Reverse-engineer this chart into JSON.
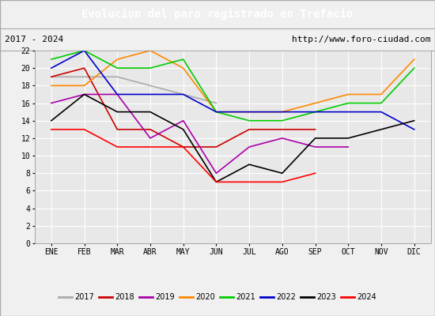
{
  "title": "Evolucion del paro registrado en Trefacio",
  "subtitle_left": "2017 - 2024",
  "subtitle_right": "http://www.foro-ciudad.com",
  "months": [
    "ENE",
    "FEB",
    "MAR",
    "ABR",
    "MAY",
    "JUN",
    "JUL",
    "AGO",
    "SEP",
    "OCT",
    "NOV",
    "DIC"
  ],
  "series": {
    "2017": {
      "color": "#aaaaaa",
      "data": [
        19,
        19,
        19,
        18,
        17,
        16,
        null,
        null,
        null,
        null,
        null,
        null
      ]
    },
    "2018": {
      "color": "#cc0000",
      "data": [
        19,
        20,
        13,
        13,
        11,
        11,
        13,
        13,
        13,
        null,
        null,
        null
      ]
    },
    "2019": {
      "color": "#aa00aa",
      "data": [
        16,
        17,
        17,
        12,
        14,
        8,
        11,
        12,
        11,
        11,
        null,
        null
      ]
    },
    "2020": {
      "color": "#ff8800",
      "data": [
        18,
        18,
        21,
        22,
        20,
        15,
        15,
        15,
        16,
        17,
        17,
        21
      ]
    },
    "2021": {
      "color": "#00cc00",
      "data": [
        21,
        22,
        20,
        20,
        21,
        15,
        14,
        14,
        15,
        16,
        16,
        20
      ]
    },
    "2022": {
      "color": "#0000cc",
      "data": [
        20,
        22,
        17,
        17,
        17,
        15,
        15,
        15,
        15,
        15,
        15,
        13
      ]
    },
    "2023": {
      "color": "#000000",
      "data": [
        14,
        17,
        15,
        15,
        13,
        7,
        9,
        8,
        12,
        12,
        13,
        14
      ]
    },
    "2024": {
      "color": "#ff0000",
      "data": [
        13,
        13,
        11,
        11,
        11,
        7,
        7,
        7,
        8,
        null,
        null,
        null
      ]
    }
  },
  "ylim": [
    0,
    22
  ],
  "yticks": [
    0,
    2,
    4,
    6,
    8,
    10,
    12,
    14,
    16,
    18,
    20,
    22
  ],
  "title_bg": "#4472c4",
  "title_color": "white",
  "plot_bg": "#e8e8e8",
  "grid_color": "white",
  "subtitle_bg": "#f0f0f0"
}
